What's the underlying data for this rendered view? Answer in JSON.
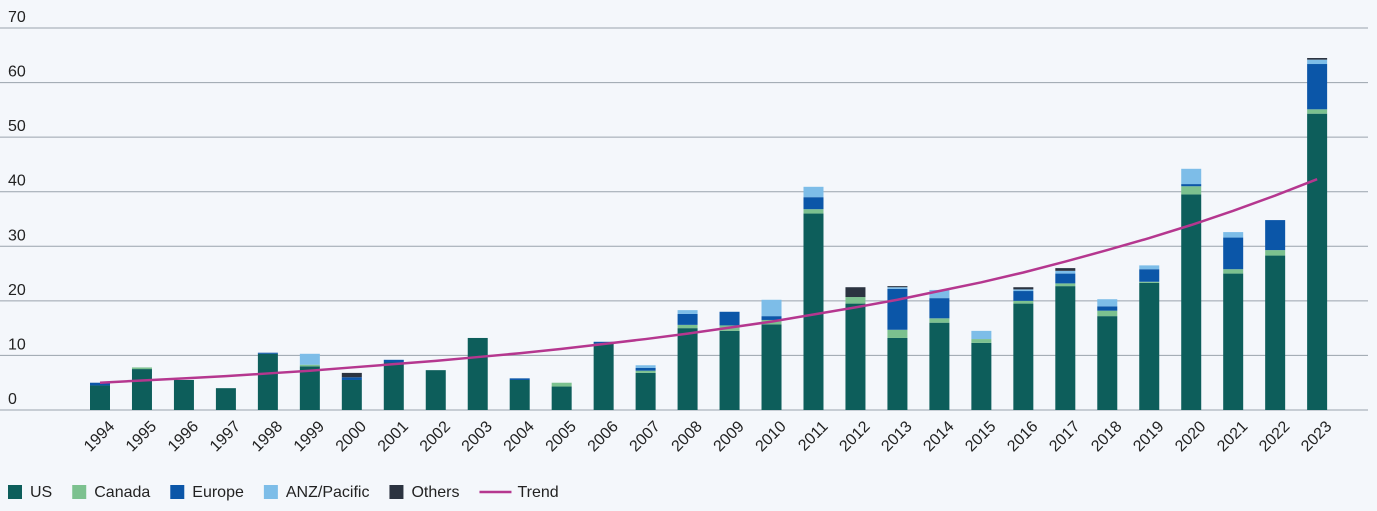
{
  "chart_data": {
    "type": "bar",
    "stacked": true,
    "categories": [
      "1994",
      "1995",
      "1996",
      "1997",
      "1998",
      "1999",
      "2000",
      "2001",
      "2002",
      "2003",
      "2004",
      "2005",
      "2006",
      "2007",
      "2008",
      "2009",
      "2010",
      "2011",
      "2012",
      "2013",
      "2014",
      "2015",
      "2016",
      "2017",
      "2018",
      "2019",
      "2020",
      "2021",
      "2022",
      "2023"
    ],
    "series": [
      {
        "name": "US",
        "color": "#0d5e5b",
        "values": [
          4.5,
          7.5,
          5.5,
          4,
          10.3,
          8,
          5.5,
          8.7,
          7.3,
          13.2,
          5.5,
          4.3,
          12.2,
          6.8,
          15,
          14.5,
          15.7,
          36,
          19.5,
          13.2,
          16,
          12.3,
          19.5,
          22.7,
          17.2,
          23.3,
          39.5,
          25,
          28.3,
          54.3
        ]
      },
      {
        "name": "Canada",
        "color": "#7cc18f",
        "values": [
          0,
          0.3,
          0,
          0,
          0,
          0.3,
          0,
          0,
          0,
          0,
          0,
          0.7,
          0,
          0.4,
          0.6,
          1,
          0.8,
          0.8,
          1.2,
          1.5,
          0.8,
          0.7,
          0.5,
          0.5,
          1,
          0.2,
          1.5,
          0.8,
          1,
          0.8
        ]
      },
      {
        "name": "Europe",
        "color": "#0b56a8",
        "values": [
          0.5,
          0,
          0,
          0,
          0.2,
          0,
          0.5,
          0.5,
          0,
          0,
          0.3,
          0,
          0.3,
          0.5,
          2,
          2.5,
          0.7,
          2.2,
          0,
          7.5,
          3.7,
          0,
          1.8,
          1.8,
          0.8,
          2.3,
          0.4,
          5.8,
          5.5,
          8.3
        ]
      },
      {
        "name": "ANZ/Pacific",
        "color": "#7dbde8",
        "values": [
          0,
          0,
          0,
          0,
          0,
          2,
          0,
          0,
          0,
          0,
          0,
          0,
          0,
          0.5,
          0.7,
          0,
          3,
          1.9,
          0,
          0.3,
          1.5,
          1.5,
          0.3,
          0.5,
          1.3,
          0.7,
          2.8,
          1,
          0,
          0.8
        ]
      },
      {
        "name": "Others",
        "color": "#2b3340",
        "values": [
          0,
          0,
          0,
          0,
          0,
          0,
          0.8,
          0,
          0,
          0,
          0,
          0,
          0,
          0,
          0,
          0,
          0,
          0,
          1.8,
          0.2,
          0,
          0,
          0.4,
          0.5,
          0,
          0,
          0,
          0,
          0,
          0.3
        ]
      },
      {
        "name": "Trend",
        "color": "#b5378f",
        "type": "line",
        "values": [
          5.0,
          5.4,
          5.8,
          6.2,
          6.7,
          7.2,
          7.8,
          8.4,
          9.0,
          9.7,
          10.4,
          11.2,
          12.1,
          13.0,
          14.0,
          15.1,
          16.2,
          17.5,
          18.8,
          20.2,
          21.8,
          23.4,
          25.2,
          27.2,
          29.3,
          31.5,
          33.9,
          36.5,
          39.3,
          42.3
        ]
      }
    ],
    "ylim": [
      0,
      70
    ],
    "yticks": [
      0,
      10,
      20,
      30,
      40,
      50,
      60,
      70
    ],
    "grid": true,
    "legend": "bottom-left"
  }
}
